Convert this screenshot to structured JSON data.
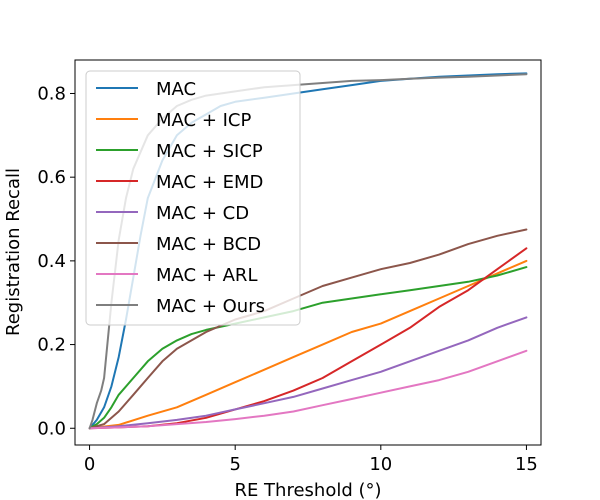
{
  "chart_data": {
    "type": "line",
    "title": "",
    "xlabel": "RE Threshold (°)",
    "ylabel": "Registration Recall",
    "xlim": [
      -0.5,
      15.5
    ],
    "ylim": [
      -0.04,
      0.88
    ],
    "xticks": [
      0,
      5,
      10,
      15
    ],
    "yticks": [
      0.0,
      0.2,
      0.4,
      0.6,
      0.8
    ],
    "xtick_labels": [
      "0",
      "5",
      "10",
      "15"
    ],
    "ytick_labels": [
      "0.0",
      "0.2",
      "0.4",
      "0.6",
      "0.8"
    ],
    "grid": false,
    "legend_position": "upper-left",
    "series": [
      {
        "name": "MAC",
        "color": "#1f77b4",
        "x": [
          0,
          0.25,
          0.5,
          0.75,
          1,
          1.25,
          1.5,
          1.75,
          2,
          2.5,
          3,
          3.5,
          4,
          4.5,
          5,
          6,
          7,
          8,
          9,
          10,
          11,
          12,
          13,
          14,
          15
        ],
        "y": [
          0,
          0.02,
          0.05,
          0.1,
          0.17,
          0.26,
          0.36,
          0.46,
          0.55,
          0.64,
          0.7,
          0.73,
          0.75,
          0.77,
          0.78,
          0.79,
          0.8,
          0.81,
          0.82,
          0.83,
          0.835,
          0.84,
          0.843,
          0.846,
          0.848
        ]
      },
      {
        "name": "MAC + ICP",
        "color": "#ff7f0e",
        "x": [
          0,
          1,
          2,
          3,
          4,
          5,
          6,
          7,
          8,
          9,
          10,
          11,
          12,
          13,
          14,
          15
        ],
        "y": [
          0,
          0.008,
          0.03,
          0.05,
          0.08,
          0.11,
          0.14,
          0.17,
          0.2,
          0.23,
          0.25,
          0.28,
          0.31,
          0.34,
          0.37,
          0.4
        ]
      },
      {
        "name": "MAC + SICP",
        "color": "#2ca02c",
        "x": [
          0,
          0.25,
          0.5,
          0.75,
          1,
          1.5,
          2,
          2.5,
          3,
          3.5,
          4,
          5,
          6,
          7,
          8,
          9,
          10,
          11,
          12,
          13,
          14,
          15
        ],
        "y": [
          0,
          0.01,
          0.025,
          0.05,
          0.08,
          0.12,
          0.16,
          0.19,
          0.21,
          0.225,
          0.235,
          0.25,
          0.265,
          0.28,
          0.3,
          0.31,
          0.32,
          0.33,
          0.34,
          0.35,
          0.365,
          0.385
        ]
      },
      {
        "name": "MAC + EMD",
        "color": "#d62728",
        "x": [
          0,
          1,
          2,
          3,
          4,
          5,
          6,
          7,
          8,
          9,
          10,
          11,
          12,
          13,
          14,
          15
        ],
        "y": [
          0,
          0.002,
          0.005,
          0.012,
          0.025,
          0.045,
          0.065,
          0.09,
          0.12,
          0.16,
          0.2,
          0.24,
          0.29,
          0.33,
          0.38,
          0.43
        ]
      },
      {
        "name": "MAC + CD",
        "color": "#9467bd",
        "x": [
          0,
          1,
          2,
          3,
          4,
          5,
          6,
          7,
          8,
          9,
          10,
          11,
          12,
          13,
          14,
          15
        ],
        "y": [
          0,
          0.005,
          0.012,
          0.02,
          0.03,
          0.045,
          0.06,
          0.075,
          0.095,
          0.115,
          0.135,
          0.16,
          0.185,
          0.21,
          0.24,
          0.265
        ]
      },
      {
        "name": "MAC + BCD",
        "color": "#8c564b",
        "x": [
          0,
          0.5,
          1,
          1.5,
          2,
          2.5,
          3,
          3.5,
          4,
          5,
          6,
          7,
          8,
          9,
          10,
          11,
          12,
          13,
          14,
          15
        ],
        "y": [
          0,
          0.01,
          0.04,
          0.08,
          0.12,
          0.16,
          0.19,
          0.21,
          0.23,
          0.26,
          0.28,
          0.31,
          0.34,
          0.36,
          0.38,
          0.395,
          0.415,
          0.44,
          0.46,
          0.475
        ]
      },
      {
        "name": "MAC + ARL",
        "color": "#e377c2",
        "x": [
          0,
          1,
          2,
          3,
          4,
          5,
          6,
          7,
          8,
          9,
          10,
          11,
          12,
          13,
          14,
          15
        ],
        "y": [
          0,
          0.002,
          0.005,
          0.01,
          0.015,
          0.022,
          0.03,
          0.04,
          0.055,
          0.07,
          0.085,
          0.1,
          0.115,
          0.135,
          0.16,
          0.185
        ]
      },
      {
        "name": "MAC + Ours",
        "color": "#7f7f7f",
        "x": [
          0,
          0.1,
          0.25,
          0.4,
          0.5,
          0.75,
          1,
          1.25,
          1.5,
          2,
          2.5,
          3,
          3.5,
          4,
          5,
          6,
          7,
          8,
          9,
          10,
          11,
          12,
          13,
          14,
          15
        ],
        "y": [
          0,
          0.02,
          0.06,
          0.09,
          0.12,
          0.3,
          0.45,
          0.55,
          0.62,
          0.7,
          0.74,
          0.77,
          0.785,
          0.795,
          0.805,
          0.815,
          0.82,
          0.825,
          0.83,
          0.832,
          0.835,
          0.838,
          0.84,
          0.843,
          0.846
        ]
      }
    ]
  }
}
